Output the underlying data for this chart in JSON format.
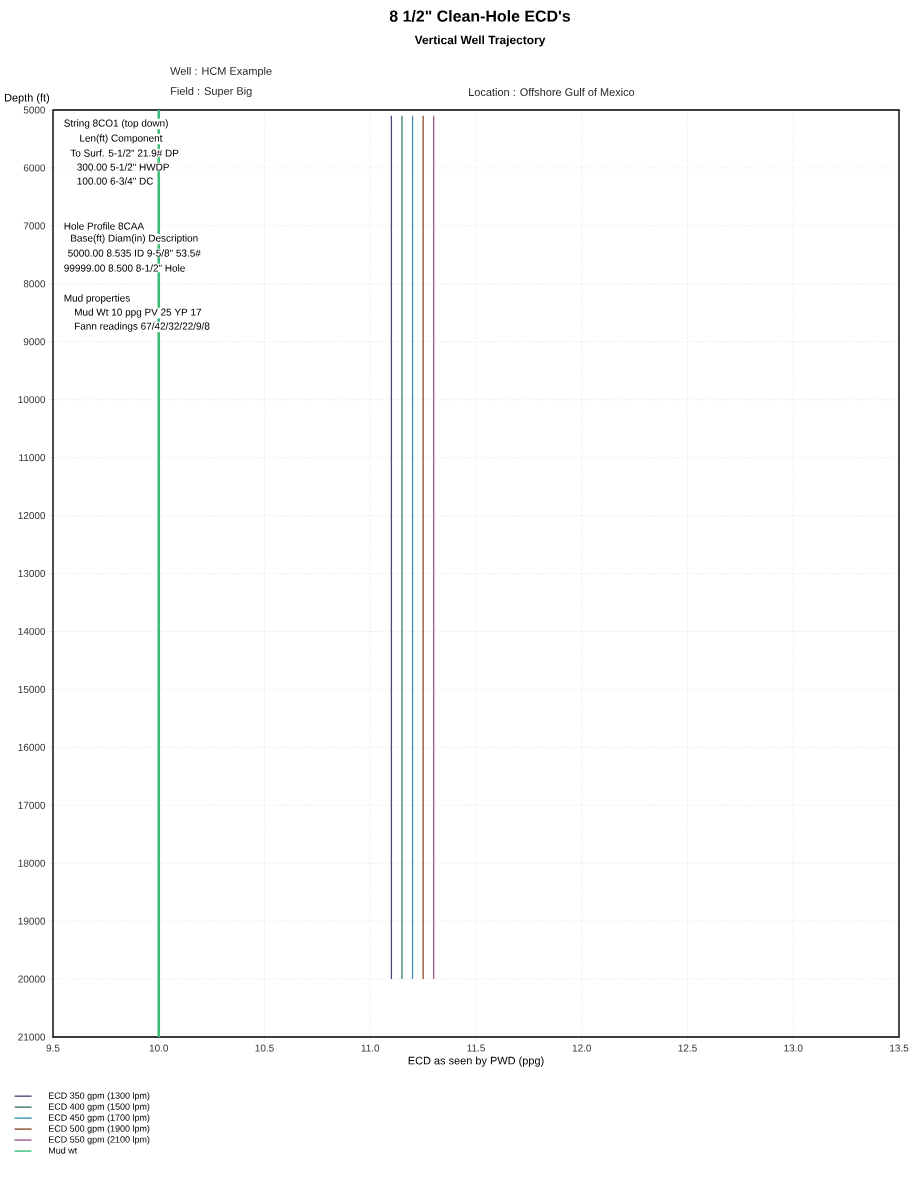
{
  "chart_data": {
    "type": "line",
    "title": "8 1/2\" Clean-Hole ECD's",
    "subtitle": "Vertical Well Trajectory",
    "xlabel": "ECD as seen by PWD (ppg)",
    "ylabel": "Depth (ft)",
    "annotations": [
      "Well :  HCM Example",
      "Field :  Super Big",
      "Location :  Offshore Gulf of Mexico",
      "String 8CO1   (top down)",
      "Len(ft) Component",
      "To Surf.  5-1/2\" 21.9# DP",
      "300.00 5-1/2\" HWDP",
      "100.00 6-3/4\" DC",
      "Hole Profile 8CAA",
      "Base(ft)  Diam(in) Description",
      "5000.00     8.535  ID 9-5/8\" 53.5#",
      "99999.00     8.500  8-1/2\" Hole",
      "Mud properties",
      "Mud Wt 10 ppg PV 25 YP 17",
      "Fann readings 67/42/32/22/9/8"
    ],
    "series": [
      {
        "name": "ECD 350 gpm (1300 lpm)",
        "color": "#4a4a7a",
        "x": [
          11.1,
          11.1
        ],
        "values": [
          5100,
          20000
        ]
      },
      {
        "name": "ECD 400 gpm (1500 lpm)",
        "color": "#3e7d5a",
        "x": [
          11.15,
          11.15
        ],
        "values": [
          5100,
          20000
        ]
      },
      {
        "name": "ECD 450 gpm (1700 lpm)",
        "color": "#3d8fb5",
        "x": [
          11.2,
          11.2
        ],
        "values": [
          5100,
          20000
        ]
      },
      {
        "name": "ECD 500 gpm (1900 lpm)",
        "color": "#8b4a2e",
        "x": [
          11.25,
          11.25
        ],
        "values": [
          5100,
          20000
        ]
      },
      {
        "name": "ECD 550 gpm (2100 lpm)",
        "color": "#9a5a80",
        "x": [
          11.3,
          11.3
        ],
        "values": [
          5100,
          20000
        ]
      },
      {
        "name": "Mud wt",
        "color": "#3dbb7a",
        "x": [
          10,
          10
        ],
        "values": [
          5000,
          21000
        ]
      }
    ],
    "xlim": [
      9.5,
      13.5
    ],
    "ylim": [
      21000,
      5000
    ],
    "xticks": [
      {
        "value": 9.5,
        "label": "9.5"
      },
      {
        "value": 10,
        "label": "10.0"
      },
      {
        "value": 10.5,
        "label": "10.5"
      },
      {
        "value": 11,
        "label": "11.0"
      },
      {
        "value": 11.5,
        "label": "11.5"
      },
      {
        "value": 12,
        "label": "12.0"
      },
      {
        "value": 12.5,
        "label": "12.5"
      },
      {
        "value": 13,
        "label": "13.0"
      },
      {
        "value": 13.5,
        "label": "13.5"
      }
    ],
    "yticks": [
      5000,
      6000,
      7000,
      8000,
      9000,
      10000,
      11000,
      12000,
      13000,
      14000,
      15000,
      16000,
      17000,
      18000,
      19000,
      20000,
      21000
    ],
    "grid": true,
    "legend": "bottom left",
    "marker": "none",
    "line_style": "solid"
  }
}
